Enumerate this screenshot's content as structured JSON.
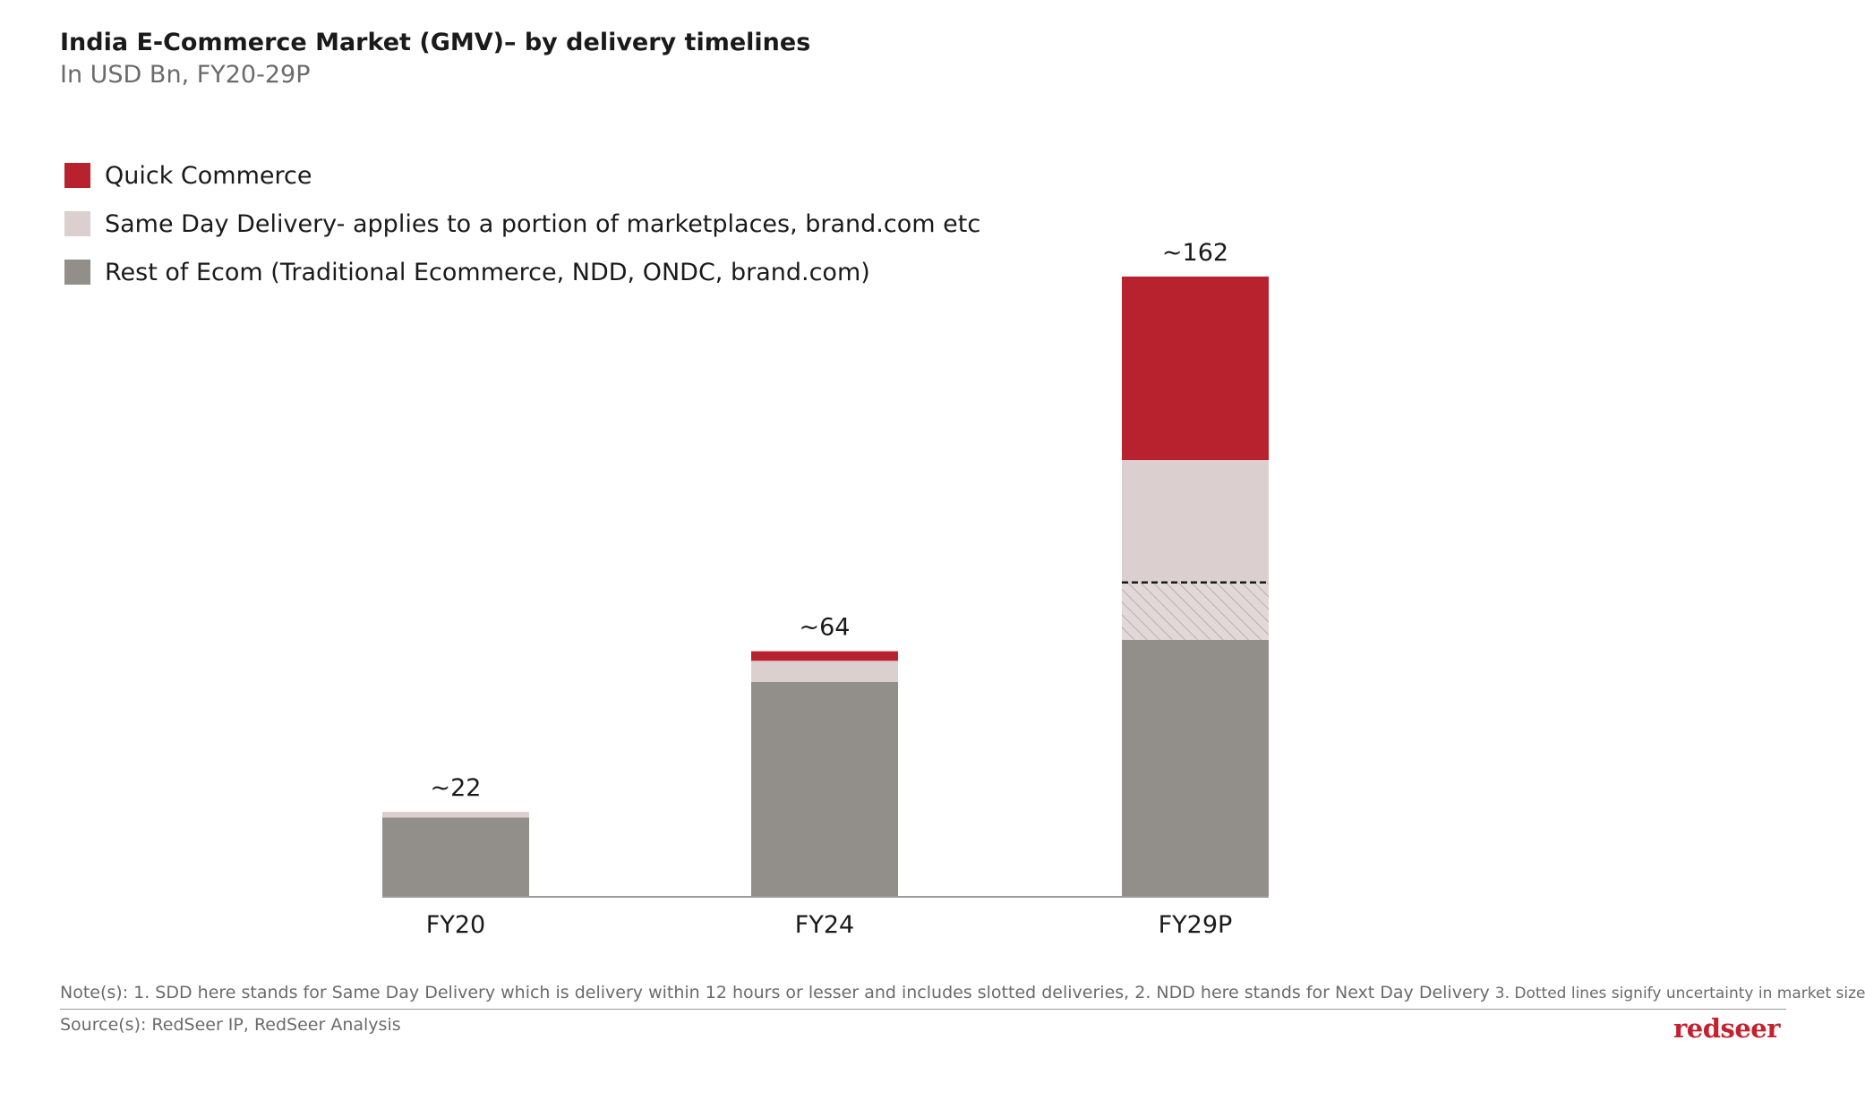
{
  "header": {
    "title": "India E-Commerce Market (GMV)– by delivery timelines",
    "subtitle": "In USD Bn, FY20-29P"
  },
  "colors": {
    "quick_commerce": "#b8212e",
    "same_day": "#dccfcf",
    "rest_of_ecom": "#928e8a",
    "axis": "#7a7a7a"
  },
  "chart_data": {
    "type": "bar",
    "stacked": true,
    "categories": [
      "FY20",
      "FY24",
      "FY29P"
    ],
    "series": [
      {
        "name": "Rest of Ecom (Traditional Ecommerce, NDD, ONDC, brand.com)",
        "color": "#928e8a",
        "values": [
          20.5,
          56,
          67
        ]
      },
      {
        "name": "Same Day Delivery- applies to a portion of marketplaces, brand.com etc",
        "color": "#dccfcf",
        "values": [
          1.5,
          5.5,
          47
        ]
      },
      {
        "name": "Quick Commerce",
        "color": "#b8212e",
        "values": [
          0,
          2.5,
          48
        ]
      }
    ],
    "uncertain_band": {
      "category": "FY29P",
      "series": "Same Day Delivery- applies to a portion of marketplaces, brand.com etc",
      "from": 67,
      "to": 82
    },
    "totals": [
      "~22",
      "~64",
      "~162"
    ],
    "ylim": [
      0,
      162
    ],
    "legend_position": "top-left",
    "grid": false
  },
  "legend": [
    {
      "label": "Quick Commerce",
      "color": "#b8212e"
    },
    {
      "label": "Same Day Delivery- applies to a portion of marketplaces, brand.com etc",
      "color": "#dccfcf"
    },
    {
      "label": "Rest of Ecom (Traditional Ecommerce, NDD, ONDC, brand.com)",
      "color": "#928e8a"
    }
  ],
  "footer": {
    "note_main": "Note(s): 1. SDD here stands for Same Day Delivery which is delivery within 12 hours or lesser and includes slotted deliveries, 2. NDD here stands for Next Day Delivery",
    "note_tail": "3. Dotted lines signify uncertainty in market size",
    "source": "Source(s):  RedSeer IP, RedSeer Analysis",
    "logo": "redseer"
  }
}
